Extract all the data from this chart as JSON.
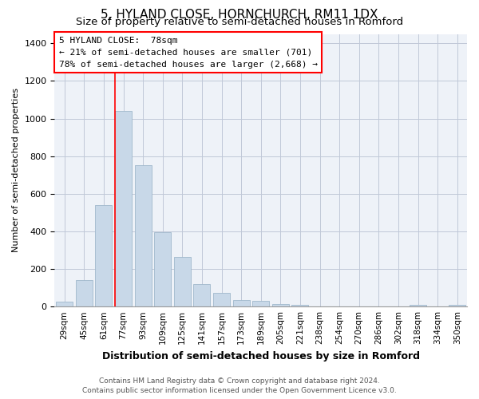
{
  "title": "5, HYLAND CLOSE, HORNCHURCH, RM11 1DX",
  "subtitle": "Size of property relative to semi-detached houses in Romford",
  "xlabel": "Distribution of semi-detached houses by size in Romford",
  "ylabel": "Number of semi-detached properties",
  "footer1": "Contains HM Land Registry data © Crown copyright and database right 2024.",
  "footer2": "Contains public sector information licensed under the Open Government Licence v3.0.",
  "categories": [
    "29sqm",
    "45sqm",
    "61sqm",
    "77sqm",
    "93sqm",
    "109sqm",
    "125sqm",
    "141sqm",
    "157sqm",
    "173sqm",
    "189sqm",
    "205sqm",
    "221sqm",
    "238sqm",
    "254sqm",
    "270sqm",
    "286sqm",
    "302sqm",
    "318sqm",
    "334sqm",
    "350sqm"
  ],
  "values": [
    25,
    140,
    540,
    1040,
    750,
    395,
    265,
    120,
    75,
    35,
    30,
    12,
    10,
    0,
    0,
    0,
    0,
    0,
    10,
    0,
    10
  ],
  "bar_color": "#c8d8e8",
  "bar_edge_color": "#a0b8cc",
  "grid_color": "#c0c8d8",
  "background_color": "#eef2f8",
  "red_line_index": 3,
  "annotation_text1": "5 HYLAND CLOSE:  78sqm",
  "annotation_text2": "← 21% of semi-detached houses are smaller (701)",
  "annotation_text3": "78% of semi-detached houses are larger (2,668) →",
  "ylim": [
    0,
    1450
  ],
  "yticks": [
    0,
    200,
    400,
    600,
    800,
    1000,
    1200,
    1400
  ],
  "title_fontsize": 11,
  "subtitle_fontsize": 9.5,
  "xlabel_fontsize": 9,
  "ylabel_fontsize": 8,
  "tick_fontsize": 8,
  "footer_fontsize": 6.5,
  "annotation_fontsize": 8
}
